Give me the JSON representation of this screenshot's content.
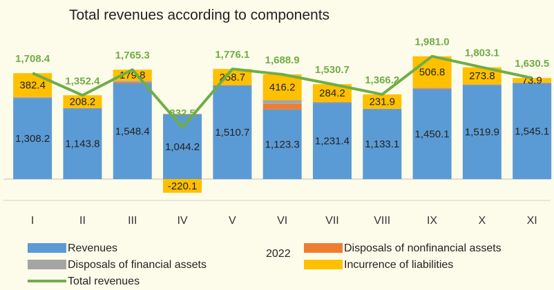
{
  "chart_data": {
    "type": "stacked-bar-line",
    "title": "Total revenues according to components",
    "note": "2022",
    "categories": [
      "I",
      "II",
      "III",
      "IV",
      "V",
      "VI",
      "VII",
      "VIII",
      "IX",
      "X",
      "XI"
    ],
    "ylim": [
      -300,
      2500
    ],
    "series": [
      {
        "name": "Revenues",
        "type": "bar",
        "color": "#5b9bd5",
        "values": [
          1308.2,
          1143.8,
          1548.4,
          1044.2,
          1510.7,
          1123.3,
          1231.4,
          1133.1,
          1450.1,
          1519.9,
          1545.1
        ],
        "value_labels": [
          "1,308.2",
          "1,143.8",
          "1,548.4",
          "1,044.2",
          "1,510.7",
          "1,123.3",
          "1,231.4",
          "1,133.1",
          "1,450.1",
          "1,519.9",
          "1,545.1"
        ]
      },
      {
        "name": "Disposals of nonfinancial assets",
        "type": "bar",
        "color": "#ed7d31",
        "values": [
          5,
          0.2,
          20,
          4,
          3,
          90,
          8,
          0.6,
          12,
          5,
          6
        ]
      },
      {
        "name": "Disposals of financial assets",
        "type": "bar",
        "color": "#a5a5a5",
        "values": [
          12.8,
          0.2,
          17.1,
          4.4,
          3.7,
          59.4,
          7.1,
          0.6,
          12.1,
          4.4,
          5.5
        ]
      },
      {
        "name": "Incurrence of liabilities",
        "type": "bar",
        "color": "#ffc000",
        "values": [
          382.4,
          208.2,
          179.8,
          -220.1,
          258.7,
          416.2,
          284.2,
          231.9,
          506.8,
          273.8,
          73.9
        ]
      },
      {
        "name": "Total revenues",
        "type": "line",
        "color": "#70ad47",
        "values": [
          1708.4,
          1352.4,
          1765.3,
          832.5,
          1776.1,
          1688.9,
          1530.7,
          1366.2,
          1981.0,
          1803.1,
          1630.5
        ],
        "value_labels": [
          "1,708.4",
          "1,352.4",
          "1,765.3",
          "832.5",
          "1,776.1",
          "1,688.9",
          "1,530.7",
          "1,366.2",
          "1,981.0",
          "1,803.1",
          "1,630.5"
        ]
      }
    ]
  }
}
